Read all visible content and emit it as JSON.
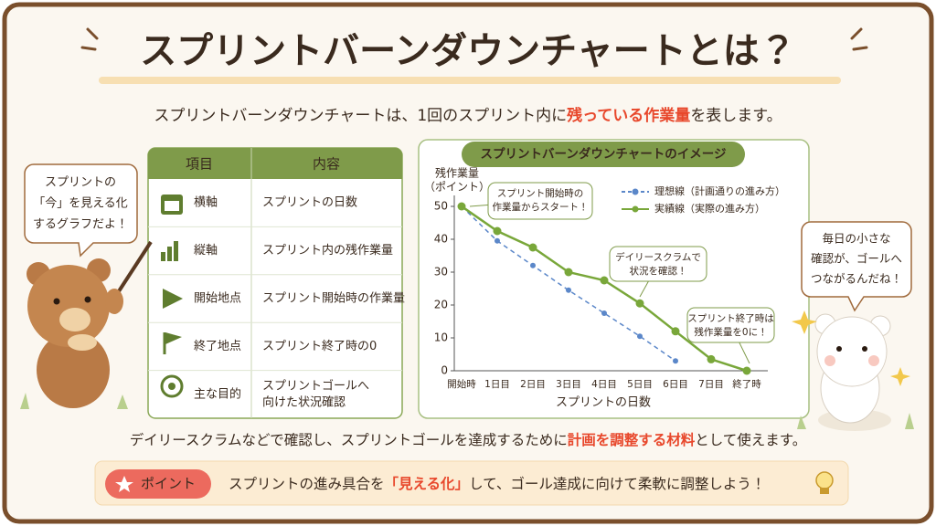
{
  "header": {
    "title": "スプリントバーンダウンチャートとは？"
  },
  "intro": {
    "parts": [
      "スプリントバーンダウンチャートは、1回のスプリント内に",
      "残っている作業量",
      "を表します。"
    ]
  },
  "table": {
    "headers": [
      "項目",
      "内容"
    ],
    "rows": [
      [
        "横軸",
        [
          "スプリントの日数"
        ]
      ],
      [
        "縦軸",
        [
          "スプリント内の残作業量"
        ]
      ],
      [
        "開始地点",
        [
          "スプリント開始時の作業量"
        ]
      ],
      [
        "終了地点",
        [
          "スプリント終了時の0"
        ]
      ],
      [
        "主な目的",
        [
          "スプリントゴールへ",
          "向けた状況確認"
        ]
      ]
    ]
  },
  "bubbles": {
    "left": [
      "スプリントの",
      "「今」を見える化",
      "するグラフだよ！"
    ],
    "right": [
      "毎日の小さな",
      "確認が、ゴールへ",
      "つながるんだね！"
    ]
  },
  "chart_data": {
    "type": "line",
    "title": "スプリントバーンダウンチャートのイメージ",
    "ylabel": [
      "残作業量",
      "（ポイント）"
    ],
    "xlabel": "スプリントの日数",
    "categories": [
      "開始時",
      "1日目",
      "2日目",
      "3日目",
      "4日目",
      "5日目",
      "6日目",
      "7日目",
      "終了時"
    ],
    "series": [
      {
        "name": "理想線（計画通りの進み方）",
        "color": "#5b87c9",
        "linestyle": "dashed",
        "values": [
          50,
          39.5,
          32,
          24.5,
          17.5,
          10.5,
          3,
          null,
          null
        ]
      },
      {
        "name": "実績線（実際の進み方）",
        "color": "#79a73a",
        "linestyle": "solid",
        "values": [
          50,
          42.5,
          37.5,
          30,
          27.5,
          20.5,
          12,
          3.5,
          0
        ]
      }
    ],
    "ylim": [
      0,
      50
    ],
    "yticks": [
      0,
      10,
      20,
      30,
      40,
      50
    ],
    "grid": false,
    "annotations": [
      [
        "スプリント開始時の",
        "作業量からスタート！"
      ],
      [
        "デイリースクラムで",
        "状況を確認！"
      ],
      [
        "スプリント終了時は",
        "残作業量を0に！"
      ]
    ]
  },
  "summary": {
    "parts": [
      "デイリースクラムなどで確認し、スプリントゴールを達成するために",
      "計画を調整する材料",
      "として使えます。"
    ]
  },
  "point": {
    "badge": "ポイント",
    "parts": [
      "スプリントの進み具合を",
      "「見える化」",
      "して、ゴール達成に向けて柔軟に調整しよう！"
    ]
  }
}
